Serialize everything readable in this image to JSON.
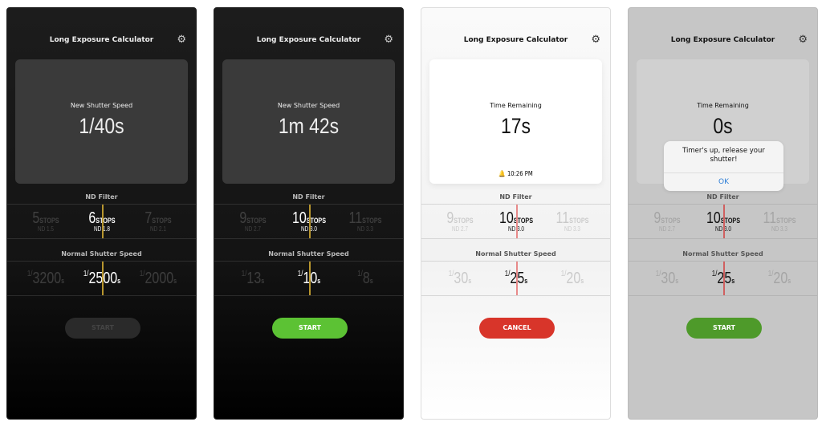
{
  "screens": [
    {
      "theme": "dark",
      "title": "Long Exposure Calculator",
      "card_label": "New Shutter Speed",
      "card_value": "1/40s",
      "alarm": null,
      "nd_label": "ND Filter",
      "nd": [
        {
          "n": "5",
          "u": "STOPS",
          "sub": "ND 1.5"
        },
        {
          "n": "6",
          "u": "STOPS",
          "sub": "ND 1.8"
        },
        {
          "n": "7",
          "u": "STOPS",
          "sub": "ND 2.1"
        }
      ],
      "speed_label": "Normal Shutter Speed",
      "speeds": [
        {
          "f": "1/",
          "n": "3200",
          "u": "s"
        },
        {
          "f": "1/",
          "n": "2500",
          "u": "s"
        },
        {
          "f": "1/",
          "n": "2000",
          "u": "s"
        }
      ],
      "button": {
        "label": "START",
        "color": "#2a2a2a",
        "text_color": "#444"
      },
      "marker_color": "#b8962e"
    },
    {
      "theme": "dark",
      "title": "Long Exposure Calculator",
      "card_label": "New Shutter Speed",
      "card_value": "1m 42s",
      "alarm": null,
      "nd_label": "ND Filter",
      "nd": [
        {
          "n": "9",
          "u": "STOPS",
          "sub": "ND 2.7"
        },
        {
          "n": "10",
          "u": "STOPS",
          "sub": "ND 3.0"
        },
        {
          "n": "11",
          "u": "STOPS",
          "sub": "ND 3.3"
        }
      ],
      "speed_label": "Normal Shutter Speed",
      "speeds": [
        {
          "f": "1/",
          "n": "13",
          "u": "s"
        },
        {
          "f": "1/",
          "n": "10",
          "u": "s"
        },
        {
          "f": "1/",
          "n": "8",
          "u": "s"
        }
      ],
      "button": {
        "label": "START",
        "color": "#5cc234",
        "text_color": "#fff"
      },
      "marker_color": "#b8962e"
    },
    {
      "theme": "light",
      "title": "Long Exposure Calculator",
      "card_label": "Time Remaining",
      "card_value": "17s",
      "alarm": "10:26 PM",
      "nd_label": "ND Filter",
      "nd": [
        {
          "n": "9",
          "u": "STOPS",
          "sub": "ND 2.7"
        },
        {
          "n": "10",
          "u": "STOPS",
          "sub": "ND 3.0"
        },
        {
          "n": "11",
          "u": "STOPS",
          "sub": "ND 3.3"
        }
      ],
      "speed_label": "Normal Shutter Speed",
      "speeds": [
        {
          "f": "1/",
          "n": "30",
          "u": "s"
        },
        {
          "f": "1/",
          "n": "25",
          "u": "s"
        },
        {
          "f": "1/",
          "n": "20",
          "u": "s"
        }
      ],
      "button": {
        "label": "CANCEL",
        "color": "#d8352a",
        "text_color": "#fff"
      },
      "marker_color": "#e88a8a"
    },
    {
      "theme": "gray",
      "title": "Long Exposure Calculator",
      "card_label": "Time Remaining",
      "card_value": "0s",
      "alarm": null,
      "nd_label": "ND Filter",
      "nd": [
        {
          "n": "9",
          "u": "STOPS",
          "sub": "ND 2.7"
        },
        {
          "n": "10",
          "u": "STOPS",
          "sub": "ND 3.0"
        },
        {
          "n": "11",
          "u": "STOPS",
          "sub": "ND 3.3"
        }
      ],
      "speed_label": "Normal Shutter Speed",
      "speeds": [
        {
          "f": "1/",
          "n": "30",
          "u": "s"
        },
        {
          "f": "1/",
          "n": "25",
          "u": "s"
        },
        {
          "f": "1/",
          "n": "20",
          "u": "s"
        }
      ],
      "button": {
        "label": "START",
        "color": "#4e9a2a",
        "text_color": "#fff"
      },
      "marker_color": "#d06060",
      "dialog": {
        "message": "Timer's up, release your shutter!",
        "ok": "OK"
      }
    }
  ]
}
